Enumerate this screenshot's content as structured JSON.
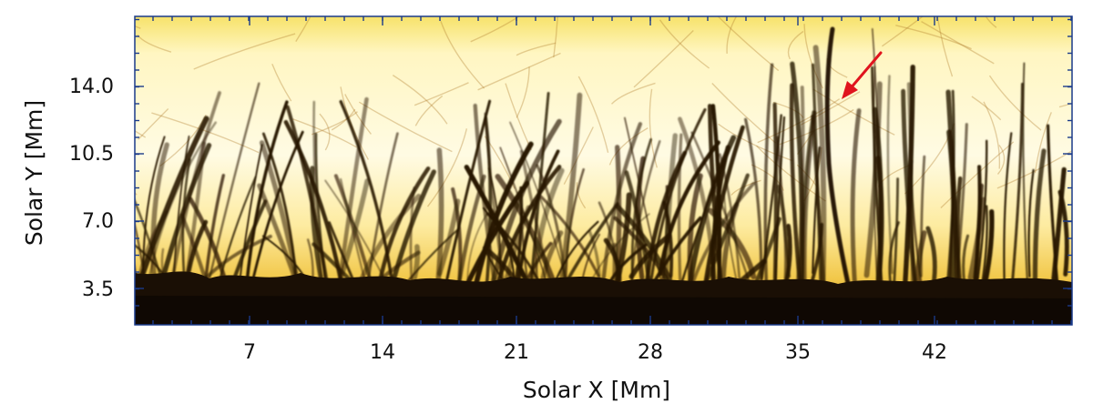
{
  "figure": {
    "x_axis": {
      "label": "Solar X [Mm]",
      "ticks": [
        "7",
        "14",
        "21",
        "28",
        "35",
        "42"
      ]
    },
    "y_axis": {
      "label": "Solar Y [Mm]",
      "ticks": [
        "3.5",
        "7.0",
        "10.5",
        "14.0"
      ]
    },
    "colors": {
      "background_light": "#fffbe0",
      "background_warm": "#f5cf3f",
      "spicule_dark": "#1a0f05",
      "arrow": "#e0141e"
    },
    "annotation": {
      "type": "arrow",
      "icon": "red-arrow"
    }
  }
}
